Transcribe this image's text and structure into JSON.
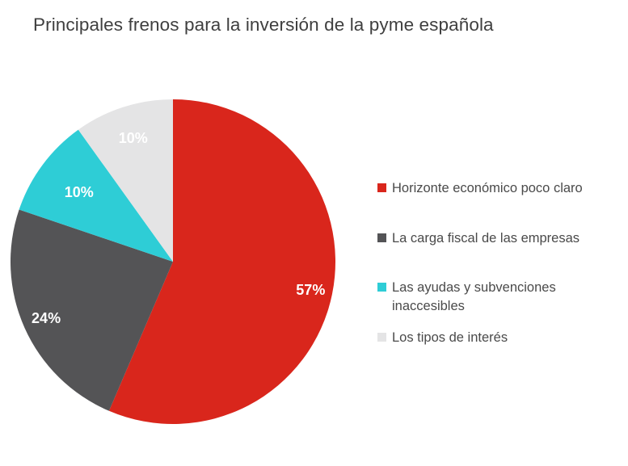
{
  "title": "Principales frenos para la inversión de la pyme española",
  "chart_data": {
    "type": "pie",
    "title": "Principales frenos para la inversión de la pyme española",
    "legend_position": "right",
    "start_angle_deg": 0,
    "direction": "clockwise",
    "slices": [
      {
        "label": "Horizonte económico poco claro",
        "value": 57,
        "display": "57%",
        "color": "#d9261c",
        "label_color": "#ffffff"
      },
      {
        "label": "La carga fiscal de las empresas",
        "value": 24,
        "display": "24%",
        "color": "#545456",
        "label_color": "#ffffff"
      },
      {
        "label": "Las ayudas y subvenciones inaccesibles",
        "value": 10,
        "display": "10%",
        "color": "#2ecdd6",
        "label_color": "#ffffff"
      },
      {
        "label": "Los tipos de interés",
        "value": 10,
        "display": "10%",
        "color": "#e4e4e5",
        "label_color": "#ffffff"
      }
    ]
  }
}
